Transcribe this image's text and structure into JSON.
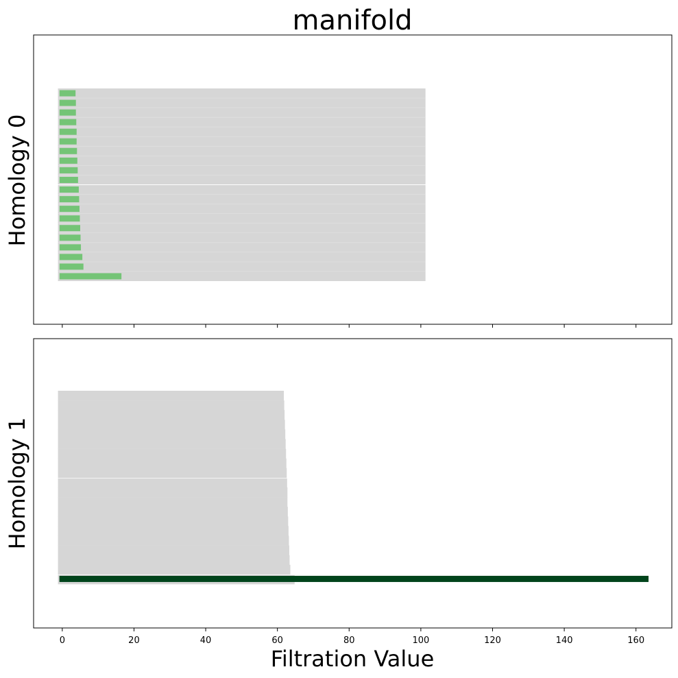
{
  "chart_data": {
    "type": "bar",
    "title": "manifold",
    "xlabel": "Filtration Value",
    "xlim": [
      -8,
      170
    ],
    "xticks": [
      0,
      20,
      40,
      60,
      80,
      100,
      120,
      140,
      160
    ],
    "grid": false,
    "panels": [
      {
        "ylabel": "Homology 0",
        "background": {
          "x_start": -1.2,
          "x_end": 101.3
        },
        "background_split_after": 10,
        "bar_color": "#74c476",
        "bars": [
          {
            "birth": 0,
            "death": 16.5
          },
          {
            "birth": 0,
            "death": 5.9
          },
          {
            "birth": 0,
            "death": 5.6
          },
          {
            "birth": 0,
            "death": 5.2
          },
          {
            "birth": 0,
            "death": 5.1
          },
          {
            "birth": 0,
            "death": 5.0
          },
          {
            "birth": 0,
            "death": 4.9
          },
          {
            "birth": 0,
            "death": 4.8
          },
          {
            "birth": 0,
            "death": 4.7
          },
          {
            "birth": 0,
            "death": 4.6
          },
          {
            "birth": 0,
            "death": 4.4
          },
          {
            "birth": 0,
            "death": 4.3
          },
          {
            "birth": 0,
            "death": 4.2
          },
          {
            "birth": 0,
            "death": 4.1
          },
          {
            "birth": 0,
            "death": 4.0
          },
          {
            "birth": 0,
            "death": 4.0
          },
          {
            "birth": 0,
            "death": 3.9
          },
          {
            "birth": 0,
            "death": 3.8
          },
          {
            "birth": 0,
            "death": 3.8
          },
          {
            "birth": 0,
            "death": 3.7
          }
        ]
      },
      {
        "ylabel": "Homology 1",
        "background_ends": [
          64.8,
          63.6,
          63.4,
          63.3,
          63.2,
          63.1,
          63.0,
          62.9,
          62.8,
          62.8,
          62.7,
          62.6,
          62.5,
          62.4,
          62.3,
          62.2,
          62.1,
          62.0,
          61.9,
          61.8
        ],
        "background_start": -1.2,
        "background_split_after": [
          1,
          11
        ],
        "bar_color": "#00441b",
        "bars": [
          {
            "birth": -0.8,
            "death": 163.5
          }
        ]
      }
    ]
  }
}
